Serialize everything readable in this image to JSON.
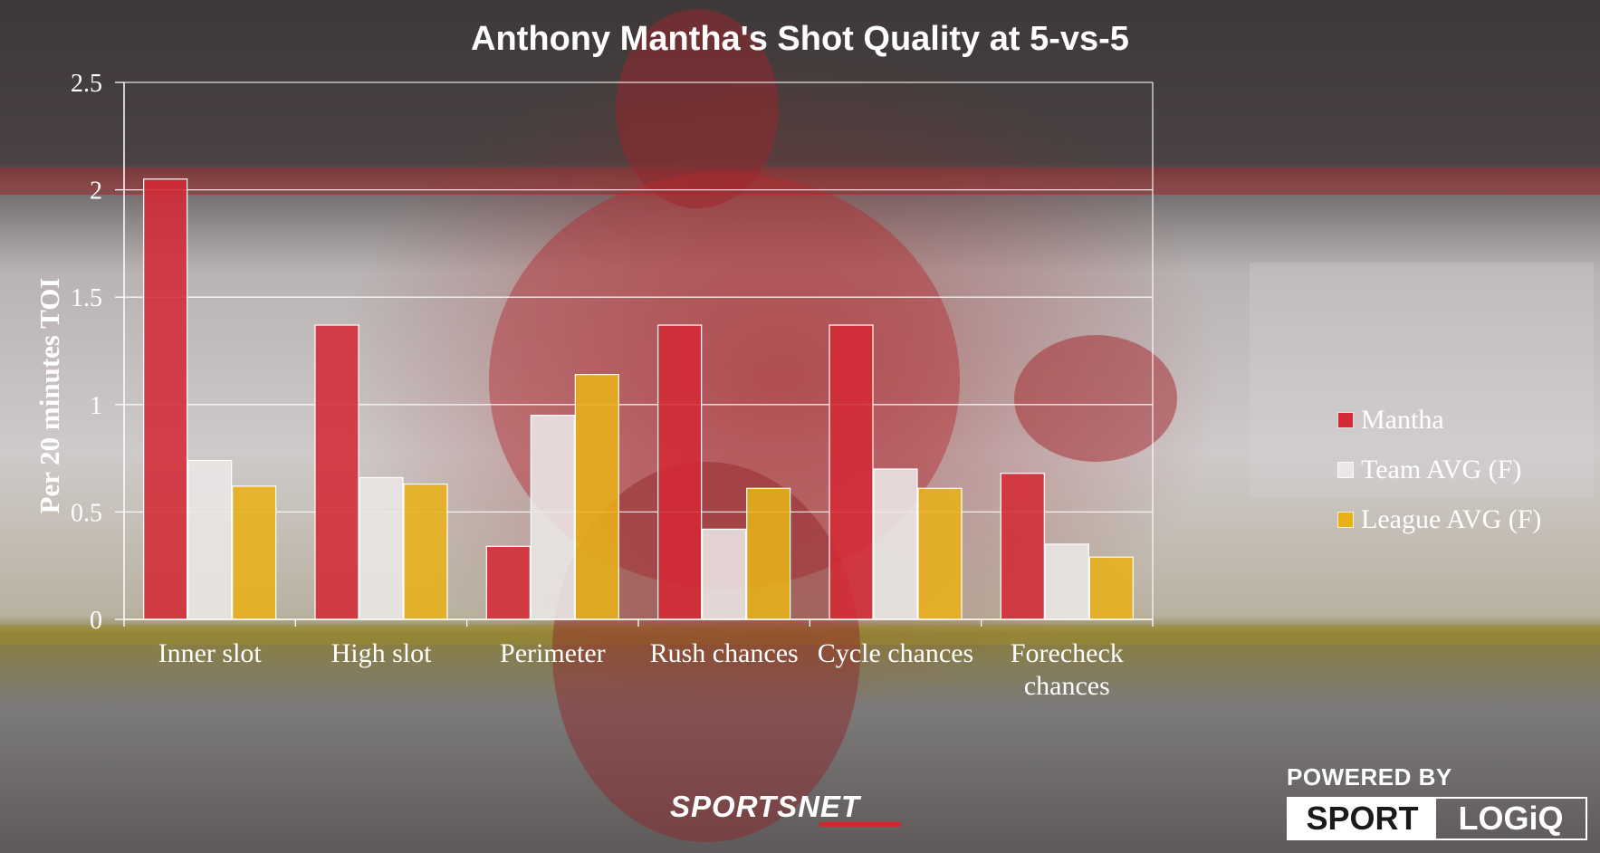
{
  "chart_data": {
    "type": "bar",
    "title": "Anthony Mantha's Shot Quality at 5-vs-5",
    "ylabel": "Per 20 minutes TOI",
    "xlabel": "",
    "ylim": [
      0,
      2.5
    ],
    "yticks": [
      "0",
      "0.5",
      "1",
      "1.5",
      "2",
      "2.5"
    ],
    "grid": true,
    "legend_position": "right",
    "categories": [
      "Inner slot",
      "High slot",
      "Perimeter",
      "Rush chances",
      "Cycle chances",
      "Forecheck chances"
    ],
    "series": [
      {
        "name": "Mantha",
        "color": "#d42a35",
        "values": [
          2.05,
          1.37,
          0.34,
          1.37,
          1.37,
          0.68
        ]
      },
      {
        "name": "Team AVG (F)",
        "color": "#ebe7e6",
        "values": [
          0.74,
          0.66,
          0.95,
          0.42,
          0.7,
          0.35
        ]
      },
      {
        "name": "League AVG (F)",
        "color": "#e8b118",
        "values": [
          0.62,
          0.63,
          1.14,
          0.61,
          0.61,
          0.29
        ]
      }
    ]
  },
  "branding": {
    "broadcaster": "SPORTSNET",
    "powered_by": "POWERED BY",
    "logo_left": "SPORT",
    "logo_right": "LOGiQ"
  }
}
